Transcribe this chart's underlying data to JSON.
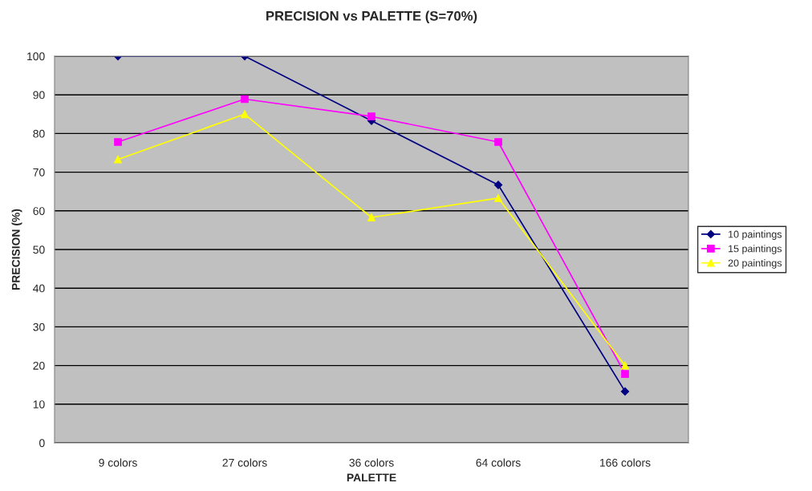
{
  "chart_data": {
    "type": "line",
    "title": "PRECISION vs PALETTE (S=70%)",
    "xlabel": "PALETTE",
    "ylabel": "PRECISION (%)",
    "categories": [
      "9 colors",
      "27 colors",
      "36 colors",
      "64 colors",
      "166 colors"
    ],
    "series": [
      {
        "name": "10 paintings",
        "color": "#000080",
        "marker": "diamond",
        "values": [
          100,
          100,
          83.3,
          66.7,
          13.3
        ]
      },
      {
        "name": "15 paintings",
        "color": "#ff00ff",
        "marker": "square",
        "values": [
          77.8,
          88.9,
          84.4,
          77.8,
          17.8
        ]
      },
      {
        "name": "20 paintings",
        "color": "#ffff00",
        "marker": "triangle",
        "values": [
          73.3,
          85,
          58.3,
          63.3,
          20
        ]
      }
    ],
    "ylim": [
      0,
      100
    ],
    "yticks": [
      0,
      10,
      20,
      30,
      40,
      50,
      60,
      70,
      80,
      90,
      100
    ],
    "grid": "y",
    "legend": "right"
  }
}
